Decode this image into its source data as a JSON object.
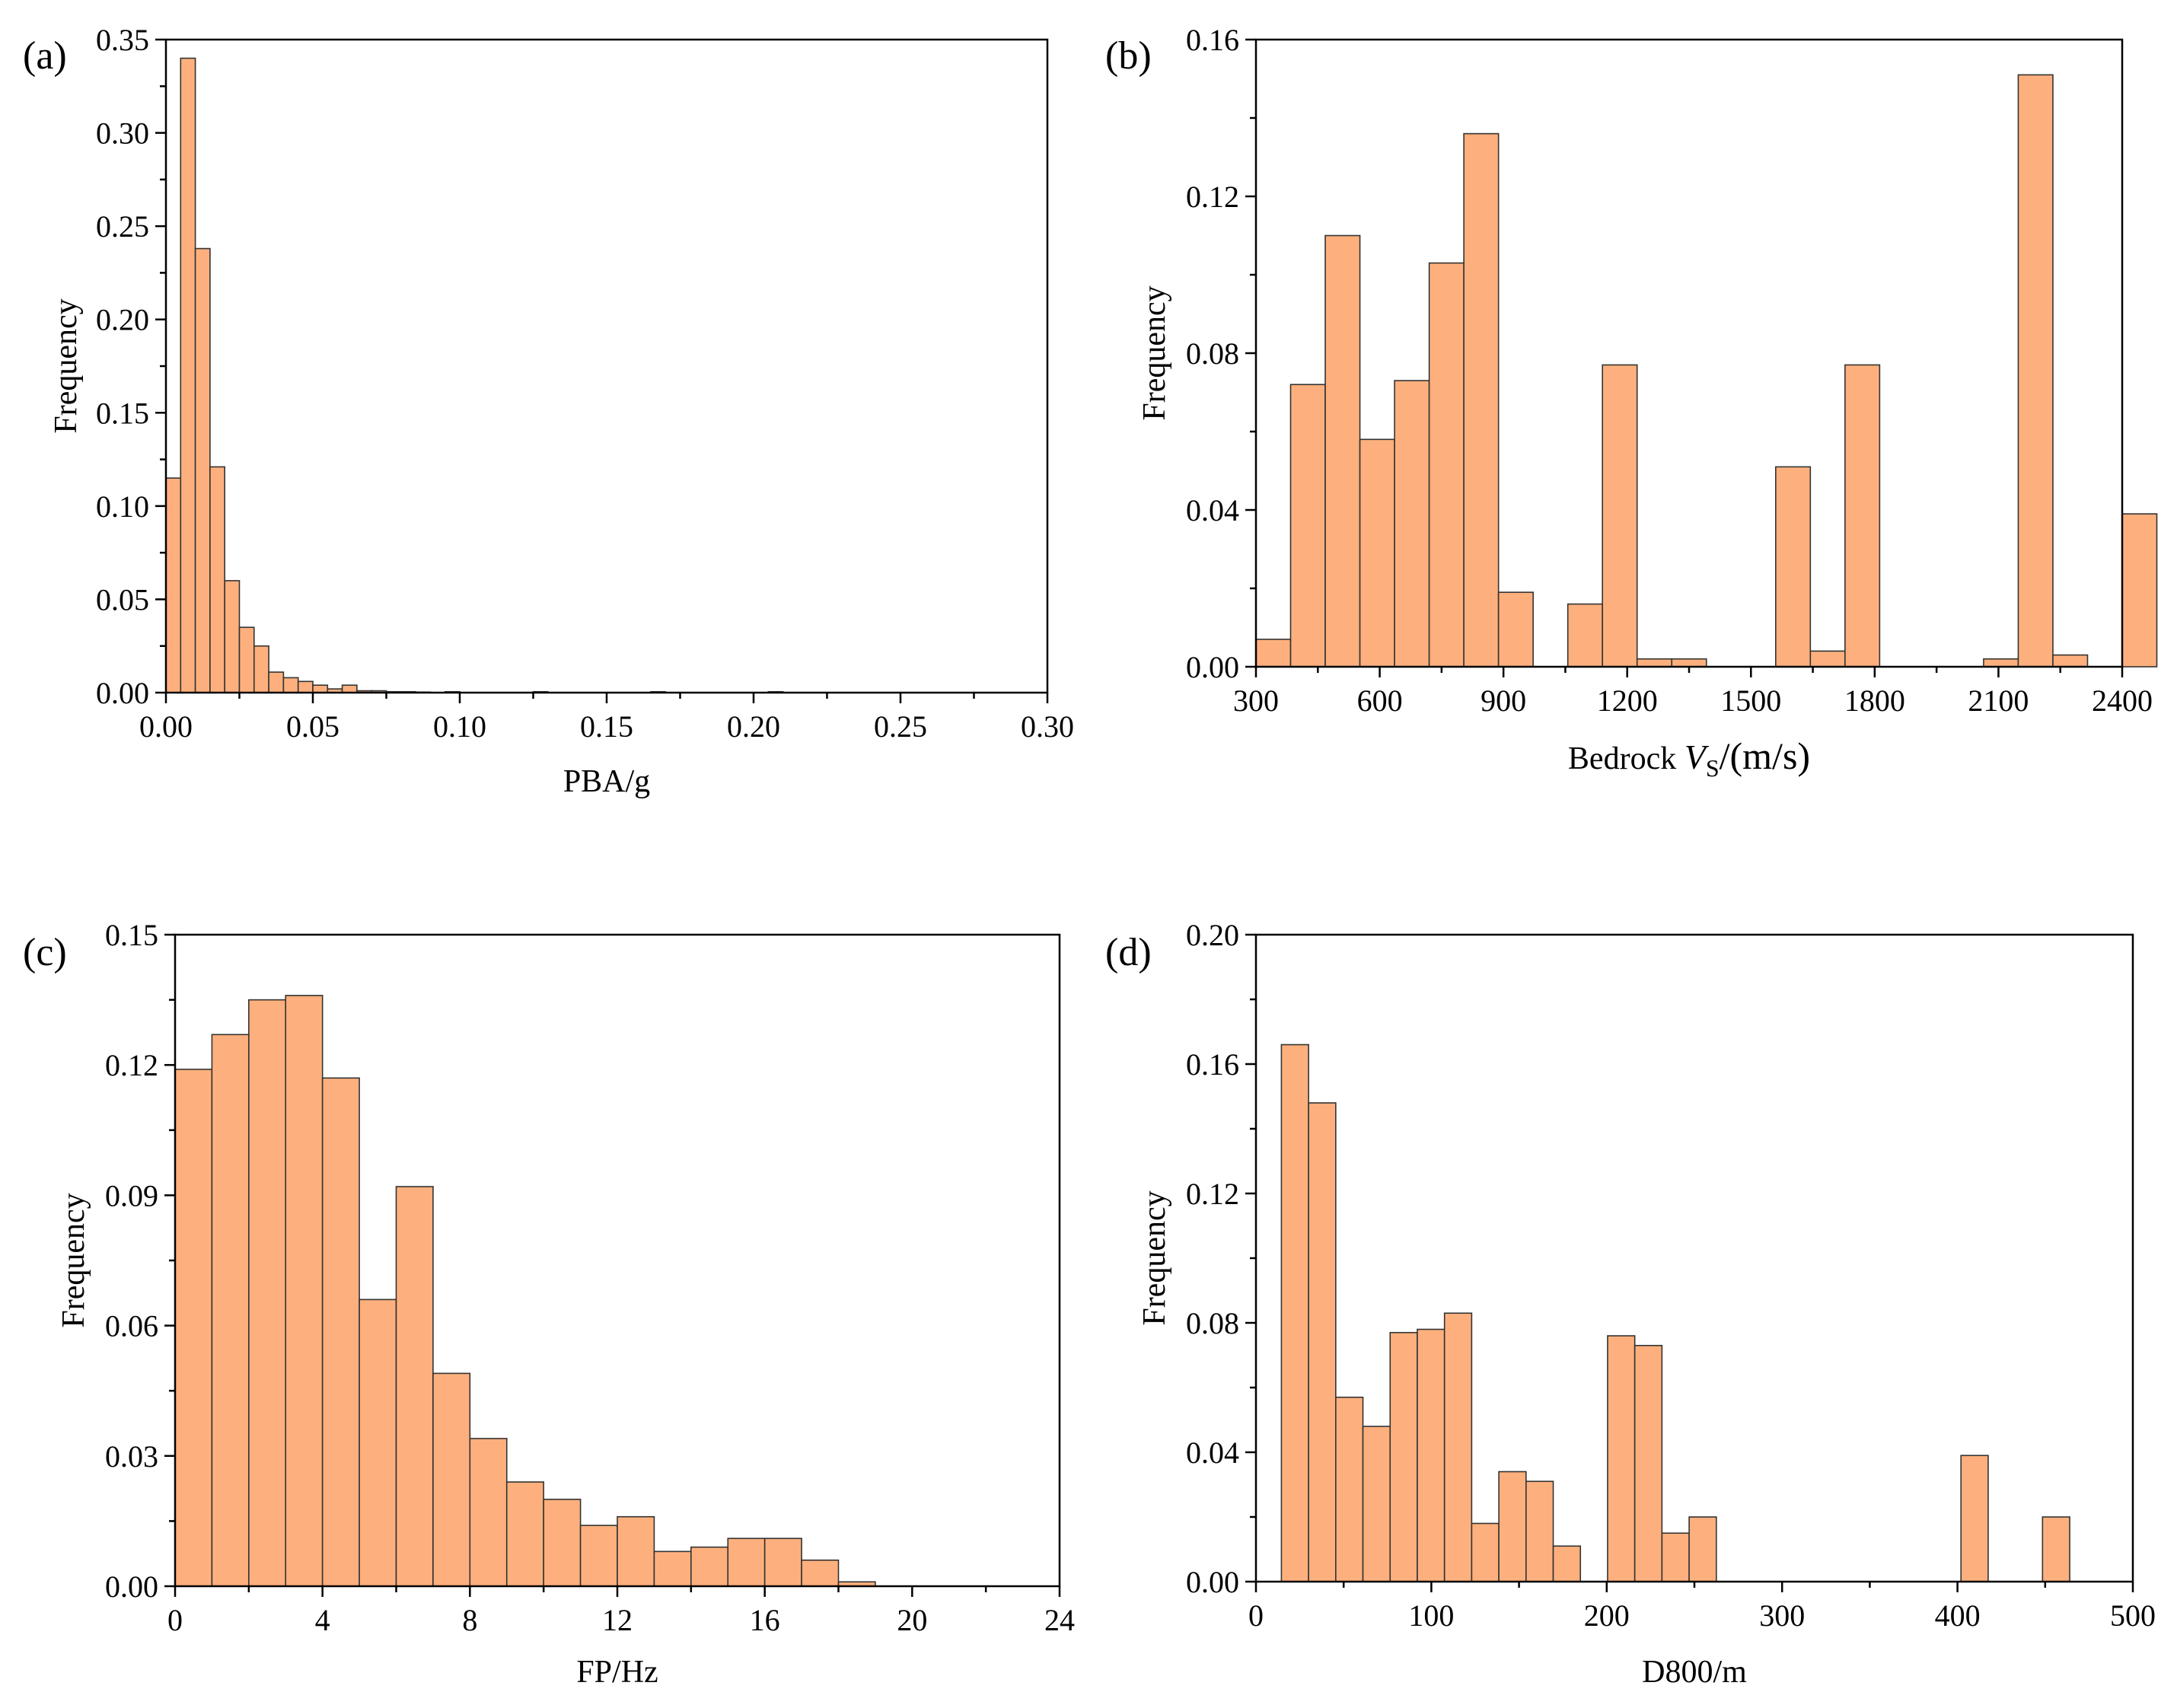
{
  "figure": {
    "bar_color": "#FDB07D",
    "edge_color": "#333333"
  },
  "chart_data": [
    {
      "type": "bar",
      "panel_label": "(a)",
      "xlabel": "PBA/g",
      "ylabel": "Frequency",
      "xlim": [
        0,
        0.3
      ],
      "ylim": [
        0,
        0.35
      ],
      "bin_width": 0.005,
      "bin_start": 0,
      "values": [
        0.115,
        0.34,
        0.238,
        0.121,
        0.06,
        0.035,
        0.025,
        0.011,
        0.008,
        0.006,
        0.004,
        0.002,
        0.004,
        0.001,
        0.001,
        0.0005,
        0.0005,
        0.0003,
        0,
        0.0005,
        0,
        0,
        0,
        0,
        0,
        0.0005,
        0,
        0,
        0,
        0,
        0,
        0,
        0,
        0.0005,
        0,
        0,
        0,
        0,
        0,
        0,
        0,
        0.0005
      ],
      "xticks": [
        0,
        0.05,
        0.1,
        0.15,
        0.2,
        0.25,
        0.3
      ],
      "xtick_labels": [
        "0.00",
        "0.05",
        "0.10",
        "0.15",
        "0.20",
        "0.25",
        "0.30"
      ],
      "yticks": [
        0,
        0.05,
        0.1,
        0.15,
        0.2,
        0.25,
        0.3,
        0.35
      ],
      "ytick_labels": [
        "0.00",
        "0.05",
        "0.10",
        "0.15",
        "0.20",
        "0.25",
        "0.30",
        "0.35"
      ]
    },
    {
      "type": "bar",
      "panel_label": "(b)",
      "xlabel_prefix": "Bedrock ",
      "xlabel_var": "V",
      "xlabel_sub": "S",
      "xlabel_unit": "/(m/s)",
      "ylabel": "Frequency",
      "xlim": [
        300,
        2400
      ],
      "ylim": [
        0,
        0.16
      ],
      "bin_width": 84,
      "bin_start": 300,
      "values": [
        0.007,
        0.072,
        0.11,
        0.058,
        0.073,
        0.103,
        0.136,
        0.019,
        0,
        0.016,
        0.077,
        0.002,
        0.002,
        0,
        0,
        0.051,
        0.004,
        0.077,
        0,
        0,
        0,
        0.002,
        0.151,
        0.003,
        0,
        0.039
      ],
      "xticks": [
        300,
        600,
        900,
        1200,
        1500,
        1800,
        2100,
        2400
      ],
      "xtick_labels": [
        "300",
        "600",
        "900",
        "1200",
        "1500",
        "1800",
        "2100",
        "2400"
      ],
      "yticks": [
        0,
        0.04,
        0.08,
        0.12,
        0.16
      ],
      "ytick_labels": [
        "0.00",
        "0.04",
        "0.08",
        "0.12",
        "0.16"
      ]
    },
    {
      "type": "bar",
      "panel_label": "(c)",
      "xlabel": "FP/Hz",
      "ylabel": "Frequency",
      "xlim": [
        0,
        24
      ],
      "ylim": [
        0,
        0.15
      ],
      "bin_width": 1,
      "bin_start": 0,
      "values": [
        0.119,
        0.127,
        0.135,
        0.136,
        0.117,
        0.066,
        0.092,
        0.049,
        0.034,
        0.024,
        0.02,
        0.014,
        0.016,
        0.008,
        0.009,
        0.011,
        0.011,
        0.006,
        0.001
      ],
      "xticks": [
        0,
        4,
        8,
        12,
        16,
        20,
        24
      ],
      "xtick_labels": [
        "0",
        "4",
        "8",
        "12",
        "16",
        "20",
        "24"
      ],
      "yticks": [
        0,
        0.03,
        0.06,
        0.09,
        0.12,
        0.15
      ],
      "ytick_labels": [
        "0.00",
        "0.03",
        "0.06",
        "0.09",
        "0.12",
        "0.15"
      ]
    },
    {
      "type": "bar",
      "panel_label": "(d)",
      "xlabel": "D800/m",
      "ylabel": "Frequency",
      "xlim": [
        0,
        500
      ],
      "ylim": [
        0,
        0.2
      ],
      "bin_width": 15.5,
      "bin_start": 14.5,
      "values": [
        0.166,
        0.148,
        0.057,
        0.048,
        0.077,
        0.078,
        0.083,
        0.018,
        0.034,
        0.031,
        0.011,
        0,
        0.076,
        0.073,
        0.015,
        0.02,
        0,
        0,
        0,
        0,
        0,
        0,
        0,
        0,
        0,
        0.039,
        0,
        0,
        0.02
      ],
      "xticks": [
        0,
        100,
        200,
        300,
        400,
        500
      ],
      "xtick_labels": [
        "0",
        "100",
        "200",
        "300",
        "400",
        "500"
      ],
      "yticks": [
        0,
        0.04,
        0.08,
        0.12,
        0.16,
        0.2
      ],
      "ytick_labels": [
        "0.00",
        "0.04",
        "0.08",
        "0.12",
        "0.16",
        "0.20"
      ]
    }
  ]
}
